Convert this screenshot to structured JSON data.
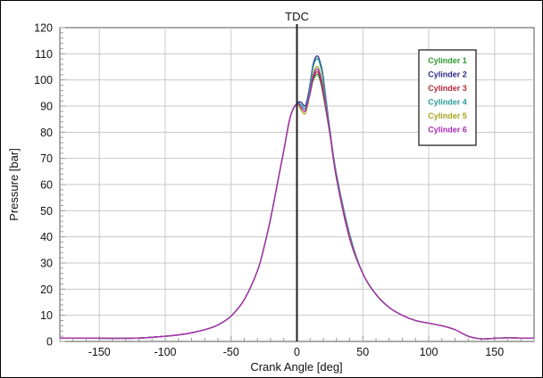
{
  "chart_data": {
    "type": "line",
    "title": "",
    "xlabel": "Crank Angle [deg]",
    "ylabel": "Pressure [bar]",
    "xlim": [
      -180,
      180
    ],
    "ylim": [
      0,
      120
    ],
    "xticks": [
      -150,
      -100,
      -50,
      0,
      50,
      100,
      150
    ],
    "yticks": [
      0,
      10,
      20,
      30,
      40,
      50,
      60,
      70,
      80,
      90,
      100,
      110,
      120
    ],
    "grid": true,
    "legend_position": "top-right",
    "annotations": [
      {
        "text": "TDC",
        "x": 0
      }
    ],
    "x": [
      -180,
      -160,
      -140,
      -120,
      -100,
      -90,
      -80,
      -70,
      -60,
      -50,
      -40,
      -30,
      -25,
      -20,
      -15,
      -10,
      -5,
      0,
      3,
      6,
      8,
      10,
      12,
      14,
      16,
      18,
      20,
      25,
      30,
      40,
      50,
      60,
      70,
      80,
      90,
      100,
      110,
      120,
      130,
      140,
      150,
      160,
      170,
      180
    ],
    "common": [
      1.3,
      1.3,
      1.2,
      1.3,
      2.0,
      2.5,
      3.3,
      4.5,
      6.3,
      9.7,
      16,
      27,
      36,
      47,
      60,
      73,
      86,
      91,
      null,
      null,
      null,
      null,
      null,
      null,
      null,
      null,
      null,
      80,
      63,
      40,
      26,
      18,
      13,
      10,
      8,
      7,
      6,
      4.5,
      2,
      1,
      1.2,
      1.4,
      1.3,
      1.3
    ],
    "series": [
      {
        "name": "Cylinder 1",
        "color": "#2e9a2e",
        "peak": 102,
        "dip": 89
      },
      {
        "name": "Cylinder 2",
        "color": "#2b2b8c",
        "peak": 109,
        "dip": 90
      },
      {
        "name": "Cylinder 3",
        "color": "#b3263a",
        "peak": 103,
        "dip": 88
      },
      {
        "name": "Cylinder 4",
        "color": "#2a9a9a",
        "peak": 108,
        "dip": 89
      },
      {
        "name": "Cylinder 5",
        "color": "#a8a21e",
        "peak": 105,
        "dip": 87
      },
      {
        "name": "Cylinder 6",
        "color": "#a82ab8",
        "peak": 104,
        "dip": 88
      }
    ]
  }
}
